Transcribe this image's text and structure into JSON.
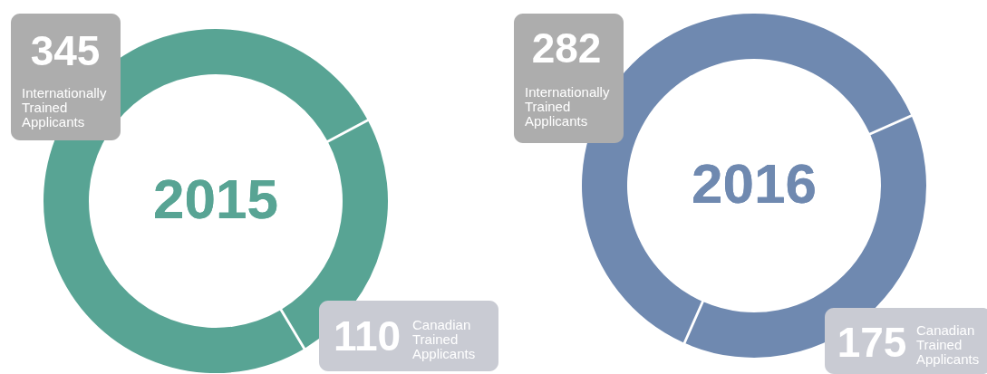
{
  "chart_data": [
    {
      "type": "donut",
      "title": "2015",
      "categories": [
        "Canadian Trained Applicants",
        "Internationally Trained Applicants"
      ],
      "values": [
        110,
        345
      ],
      "colors": [
        "#58a494",
        "#58a494"
      ],
      "data_labels": true
    },
    {
      "type": "donut",
      "title": "2016",
      "categories": [
        "Canadian Trained Applicants",
        "Internationally Trained Applicants"
      ],
      "values": [
        175,
        282
      ],
      "colors": [
        "#6f89b0",
        "#6f89b0"
      ],
      "data_labels": true
    }
  ]
}
